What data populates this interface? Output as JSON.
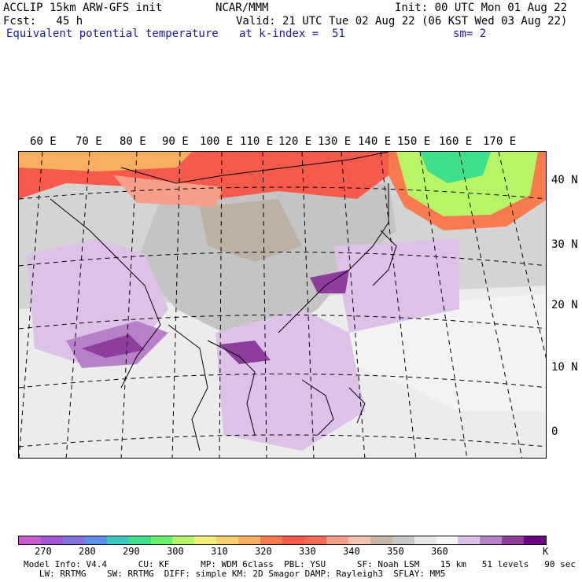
{
  "header": {
    "model": "ACCLIP 15km ARW-GFS init",
    "center": "NCAR/MMM",
    "init": "Init: 00 UTC Mon 01 Aug 22",
    "fcst": "Fcst:   45 h",
    "valid": "Valid: 21 UTC Tue 02 Aug 22 (06 KST Wed 03 Aug 22)",
    "field": "Equivalent potential temperature",
    "level": "at k-index =  51",
    "smooth": "sm= 2"
  },
  "map": {
    "lon_labels": [
      "60 E",
      "70 E",
      "80 E",
      "90 E",
      "100 E",
      "110 E",
      "120 E",
      "130 E",
      "140 E",
      "150 E",
      "160 E",
      "170 E"
    ],
    "lat_labels": [
      "40 N",
      "30 N",
      "20 N",
      "10 N",
      "0"
    ]
  },
  "colorbar": {
    "colors": [
      "#c75bd0",
      "#a456d6",
      "#8572e0",
      "#5f8fe8",
      "#3cc8c0",
      "#3ee08e",
      "#67f06a",
      "#b8f566",
      "#f5f07a",
      "#f8d070",
      "#f8b060",
      "#f87b50",
      "#f65a4a",
      "#f36a55",
      "#f6a08c",
      "#f3c4ad",
      "#c8b7a6",
      "#c9c9c9",
      "#e9e9e9",
      "#f7f7f7",
      "#dcc2e6",
      "#b780c9",
      "#8e3d9c",
      "#6a0080"
    ],
    "labels": [
      "270",
      "280",
      "290",
      "300",
      "310",
      "320",
      "330",
      "340",
      "350",
      "360",
      "K"
    ],
    "colors_note": ""
  },
  "footer": {
    "line1": "Model Info: V4.4      CU: KF      MP: WDM 6class  PBL: YSU      SF: Noah LSM    15 km   51 levels   90 sec",
    "line2": "   LW: RRTMG    SW: RRTMG  DIFF: simple KM: 2D Smagor DAMP: Rayleigh3  SFLAY: MM5"
  }
}
